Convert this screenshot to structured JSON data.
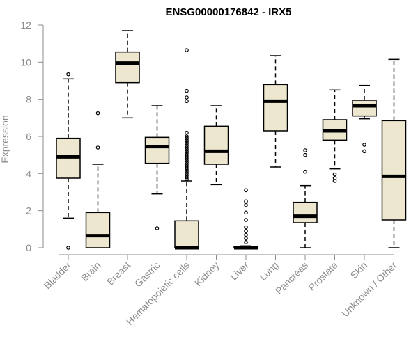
{
  "chart_data": {
    "type": "box",
    "title": "ENSG00000176842 - IRX5",
    "xlabel": "",
    "ylabel": "Expression",
    "ylim": [
      0,
      12
    ],
    "yticks": [
      0,
      2,
      4,
      6,
      8,
      10,
      12
    ],
    "grid": false,
    "fill_color": "#ede7cf",
    "categories": [
      "Bladder",
      "Brain",
      "Breast",
      "Gastric",
      "Hematopoietic cells",
      "Kidney",
      "Liver",
      "Lung",
      "Pancreas",
      "Prostate",
      "Skin",
      "Unknown / Other"
    ],
    "boxes": [
      {
        "category": "Bladder",
        "whisker_low": 1.6,
        "q1": 3.75,
        "median": 4.9,
        "q3": 5.9,
        "whisker_high": 9.1,
        "outliers": [
          0.0,
          9.35
        ]
      },
      {
        "category": "Brain",
        "whisker_low": 0.0,
        "q1": 0.0,
        "median": 0.65,
        "q3": 1.9,
        "whisker_high": 4.5,
        "outliers": [
          5.4,
          7.25
        ]
      },
      {
        "category": "Breast",
        "whisker_low": 7.0,
        "q1": 8.9,
        "median": 9.95,
        "q3": 10.55,
        "whisker_high": 11.7,
        "outliers": []
      },
      {
        "category": "Gastric",
        "whisker_low": 2.9,
        "q1": 4.55,
        "median": 5.45,
        "q3": 5.95,
        "whisker_high": 7.65,
        "outliers": [
          1.05
        ]
      },
      {
        "category": "Hematopoietic cells",
        "whisker_low": 0.0,
        "q1": 0.0,
        "median": 0.0,
        "q3": 1.45,
        "whisker_high": 3.6,
        "outliers": [
          3.7,
          3.8,
          3.9,
          4.0,
          4.1,
          4.2,
          4.3,
          4.4,
          4.5,
          4.6,
          4.7,
          4.8,
          4.9,
          5.0,
          5.1,
          5.2,
          5.3,
          5.4,
          5.5,
          5.6,
          5.7,
          5.8,
          5.9,
          6.0,
          6.2,
          7.9,
          8.1,
          8.45,
          10.65
        ]
      },
      {
        "category": "Kidney",
        "whisker_low": 3.4,
        "q1": 4.5,
        "median": 5.2,
        "q3": 6.55,
        "whisker_high": 7.65,
        "outliers": []
      },
      {
        "category": "Liver",
        "whisker_low": 0.0,
        "q1": 0.0,
        "median": 0.0,
        "q3": 0.05,
        "whisker_high": 0.1,
        "outliers": [
          0.3,
          0.5,
          0.7,
          0.9,
          1.1,
          1.5,
          1.9,
          2.3,
          2.5,
          3.1
        ]
      },
      {
        "category": "Lung",
        "whisker_low": 4.35,
        "q1": 6.3,
        "median": 7.9,
        "q3": 8.8,
        "whisker_high": 10.35,
        "outliers": []
      },
      {
        "category": "Pancreas",
        "whisker_low": 0.0,
        "q1": 1.35,
        "median": 1.7,
        "q3": 2.45,
        "whisker_high": 3.35,
        "outliers": [
          4.1,
          5.0,
          5.25
        ]
      },
      {
        "category": "Prostate",
        "whisker_low": 4.25,
        "q1": 5.8,
        "median": 6.3,
        "q3": 6.9,
        "whisker_high": 8.5,
        "outliers": [
          3.6,
          3.75,
          3.95
        ]
      },
      {
        "category": "Skin",
        "whisker_low": 6.95,
        "q1": 7.1,
        "median": 7.65,
        "q3": 7.95,
        "whisker_high": 8.75,
        "outliers": [
          5.2,
          5.55
        ]
      },
      {
        "category": "Unknown / Other",
        "whisker_low": 0.0,
        "q1": 1.5,
        "median": 3.85,
        "q3": 6.85,
        "whisker_high": 10.15,
        "outliers": []
      }
    ]
  }
}
